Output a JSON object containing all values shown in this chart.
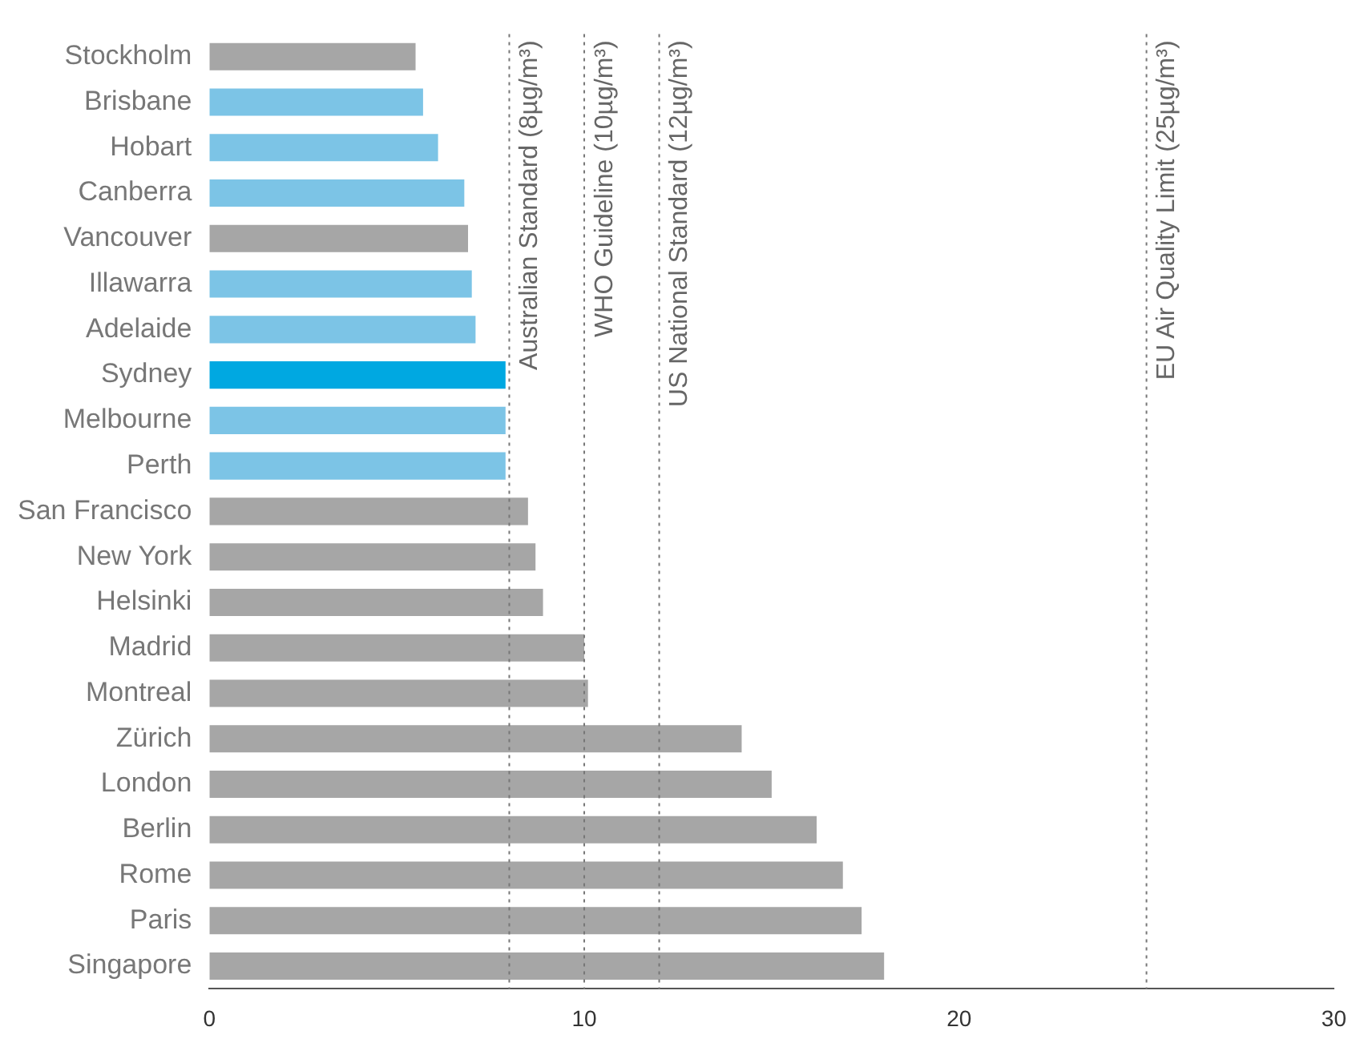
{
  "chart_data": {
    "type": "bar",
    "orientation": "horizontal",
    "categories": [
      "Stockholm",
      "Brisbane",
      "Hobart",
      "Canberra",
      "Vancouver",
      "Illawarra",
      "Adelaide",
      "Sydney",
      "Melbourne",
      "Perth",
      "San Francisco",
      "New York",
      "Helsinki",
      "Madrid",
      "Montreal",
      "Zürich",
      "London",
      "Berlin",
      "Rome",
      "Paris",
      "Singapore"
    ],
    "values": [
      5.5,
      5.7,
      6.1,
      6.8,
      6.9,
      7.0,
      7.1,
      7.9,
      7.9,
      7.9,
      8.5,
      8.7,
      8.9,
      10.0,
      10.1,
      14.2,
      15.0,
      16.2,
      16.9,
      17.4,
      18.0
    ],
    "colors": [
      "#a6a6a6",
      "#7cc4e6",
      "#7cc4e6",
      "#7cc4e6",
      "#a6a6a6",
      "#7cc4e6",
      "#7cc4e6",
      "#00a8e1",
      "#7cc4e6",
      "#7cc4e6",
      "#a6a6a6",
      "#a6a6a6",
      "#a6a6a6",
      "#a6a6a6",
      "#a6a6a6",
      "#a6a6a6",
      "#a6a6a6",
      "#a6a6a6",
      "#a6a6a6",
      "#a6a6a6",
      "#a6a6a6"
    ],
    "xlim": [
      0,
      30
    ],
    "xticks": [
      0,
      10,
      20,
      30
    ],
    "grid": false,
    "legend": false,
    "ref_lines": [
      {
        "axis": "x",
        "value": 8,
        "label": "Australian Standard (8µg/m³)",
        "color": "#777777",
        "line_style": "dotted"
      },
      {
        "axis": "x",
        "value": 10,
        "label": "WHO Guideline (10µg/m³)",
        "color": "#777777",
        "line_style": "dotted"
      },
      {
        "axis": "x",
        "value": 12,
        "label": "US National Standard (12µg/m³)",
        "color": "#777777",
        "line_style": "dotted"
      },
      {
        "axis": "x",
        "value": 25,
        "label": "EU Air Quality Limit (25µg/m³)",
        "color": "#777777",
        "line_style": "dotted"
      }
    ]
  }
}
